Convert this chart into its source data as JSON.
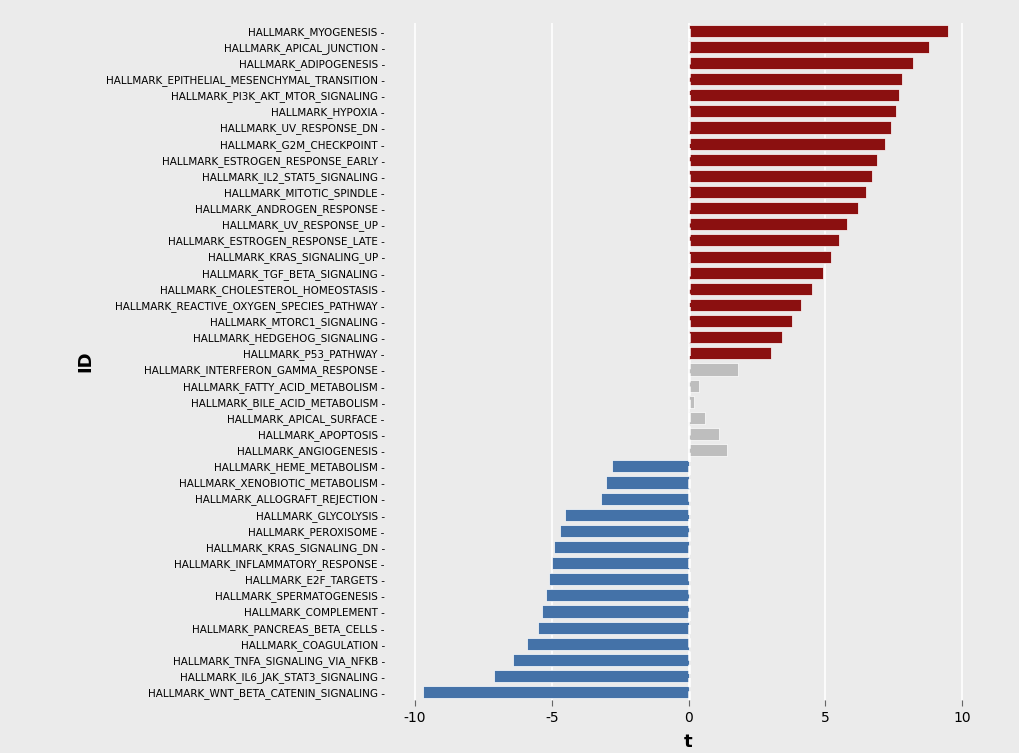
{
  "pathways": [
    "HALLMARK_MYOGENESIS",
    "HALLMARK_APICAL_JUNCTION",
    "HALLMARK_ADIPOGENESIS",
    "HALLMARK_EPITHELIAL_MESENCHYMAL_TRANSITION",
    "HALLMARK_PI3K_AKT_MTOR_SIGNALING",
    "HALLMARK_HYPOXIA",
    "HALLMARK_UV_RESPONSE_DN",
    "HALLMARK_G2M_CHECKPOINT",
    "HALLMARK_ESTROGEN_RESPONSE_EARLY",
    "HALLMARK_IL2_STAT5_SIGNALING",
    "HALLMARK_MITOTIC_SPINDLE",
    "HALLMARK_ANDROGEN_RESPONSE",
    "HALLMARK_UV_RESPONSE_UP",
    "HALLMARK_ESTROGEN_RESPONSE_LATE",
    "HALLMARK_KRAS_SIGNALING_UP",
    "HALLMARK_TGF_BETA_SIGNALING",
    "HALLMARK_CHOLESTEROL_HOMEOSTASIS",
    "HALLMARK_REACTIVE_OXYGEN_SPECIES_PATHWAY",
    "HALLMARK_MTORC1_SIGNALING",
    "HALLMARK_HEDGEHOG_SIGNALING",
    "HALLMARK_P53_PATHWAY",
    "HALLMARK_INTERFERON_GAMMA_RESPONSE",
    "HALLMARK_FATTY_ACID_METABOLISM",
    "HALLMARK_BILE_ACID_METABOLISM",
    "HALLMARK_APICAL_SURFACE",
    "HALLMARK_APOPTOSIS",
    "HALLMARK_ANGIOGENESIS",
    "HALLMARK_HEME_METABOLISM",
    "HALLMARK_XENOBIOTIC_METABOLISM",
    "HALLMARK_ALLOGRAFT_REJECTION",
    "HALLMARK_GLYCOLYSIS",
    "HALLMARK_PEROXISOME",
    "HALLMARK_KRAS_SIGNALING_DN",
    "HALLMARK_INFLAMMATORY_RESPONSE",
    "HALLMARK_E2F_TARGETS",
    "HALLMARK_SPERMATOGENESIS",
    "HALLMARK_COMPLEMENT",
    "HALLMARK_PANCREAS_BETA_CELLS",
    "HALLMARK_COAGULATION",
    "HALLMARK_TNFA_SIGNALING_VIA_NFKB",
    "HALLMARK_IL6_JAK_STAT3_SIGNALING",
    "HALLMARK_WNT_BETA_CATENIN_SIGNALING"
  ],
  "values": [
    9.5,
    8.8,
    8.2,
    7.8,
    7.7,
    7.6,
    7.4,
    7.2,
    6.9,
    6.7,
    6.5,
    6.2,
    5.8,
    5.5,
    5.2,
    4.9,
    4.5,
    4.1,
    3.8,
    3.4,
    3.0,
    1.8,
    0.4,
    0.2,
    0.6,
    1.1,
    1.4,
    -2.8,
    -3.0,
    -3.2,
    -4.5,
    -4.7,
    -4.9,
    -5.0,
    -5.1,
    -5.2,
    -5.35,
    -5.5,
    -5.9,
    -6.4,
    -7.1,
    -9.7
  ],
  "color_red": "#8B1010",
  "color_blue": "#4472A8",
  "color_gray": "#BEBEBE",
  "color_bg": "#EBEBEB",
  "color_panel": "#EBEBEB",
  "color_grid": "#FFFFFF",
  "xlabel": "t",
  "ylabel": "ID",
  "xlim": [
    -11,
    11
  ],
  "xticks": [
    -10,
    -5,
    0,
    5,
    10
  ],
  "red_threshold": 2.0,
  "blue_threshold": -2.5,
  "bar_height": 0.75
}
